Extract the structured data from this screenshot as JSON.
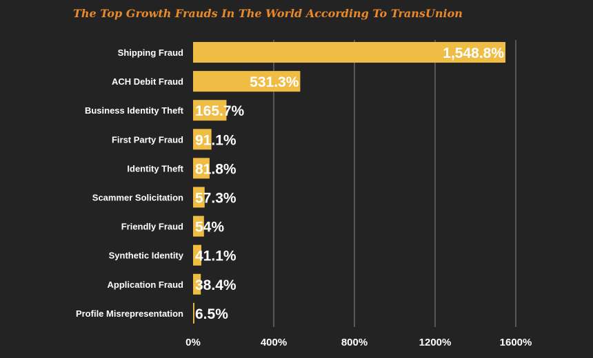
{
  "title": "The Top Growth Frauds In The World According To TransUnion",
  "colors": {
    "background": "#232323",
    "bar": "#efbd43",
    "title": "#e8892a",
    "grid": "#8a8a8a",
    "text": "#ffffff"
  },
  "chart_data": {
    "type": "bar",
    "orientation": "horizontal",
    "title": "The Top Growth Frauds In The World According To TransUnion",
    "categories": [
      "Shipping Fraud",
      "ACH Debit Fraud",
      "Business Identity Theft",
      "First Party Fraud",
      "Identity Theft",
      "Scammer Solicitation",
      "Friendly Fraud",
      "Synthetic Identity",
      "Application Fraud",
      "Profile Misrepresentation"
    ],
    "values": [
      1548.8,
      531.3,
      165.7,
      91.1,
      81.8,
      57.3,
      54,
      41.1,
      38.4,
      6.5
    ],
    "value_labels": [
      "1,548.8%",
      "531.3%",
      "165.7%",
      "91.1%",
      "81.8%",
      "57.3%",
      "54%",
      "41.1%",
      "38.4%",
      "6.5%"
    ],
    "xlim": [
      0,
      1600
    ],
    "xticks": [
      0,
      400,
      800,
      1200,
      1600
    ],
    "xtick_labels": [
      "0%",
      "400%",
      "800%",
      "1200%",
      "1600%"
    ],
    "grid": true,
    "legend": "none"
  }
}
